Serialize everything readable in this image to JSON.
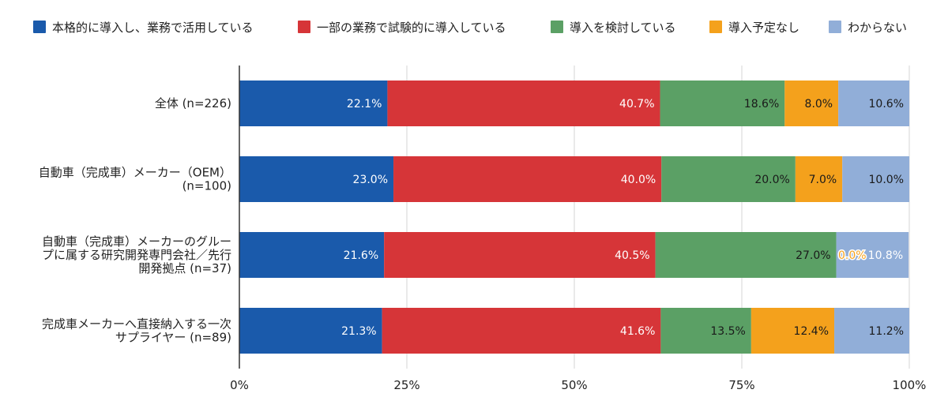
{
  "chart_data": {
    "type": "bar",
    "orientation": "horizontal",
    "stacked": "percent",
    "legend_position": "top",
    "grid": true,
    "xlim": [
      0,
      100
    ],
    "ticks": [
      "0%",
      "25%",
      "50%",
      "75%",
      "100%"
    ],
    "categories": [
      [
        "全体 (n=226)"
      ],
      [
        "自動車（完成車）メーカー（OEM）",
        "(n=100)"
      ],
      [
        "自動車（完成車）メーカーのグルー",
        "プに属する研究開発専門会社／先行",
        "開発拠点 (n=37)"
      ],
      [
        "完成車メーカーへ直接納入する一次",
        "サプライヤー (n=89)"
      ]
    ],
    "series": [
      {
        "name": "本格的に導入し、業務で活用している",
        "color": "#1a5aab",
        "label_color": "#ffffff",
        "values": [
          22.1,
          23.0,
          21.6,
          21.3
        ],
        "labels": [
          "22.1%",
          "23.0%",
          "21.6%",
          "21.3%"
        ]
      },
      {
        "name": "一部の業務で試験的に導入している",
        "color": "#d63538",
        "label_color": "#ffffff",
        "values": [
          40.7,
          40.0,
          40.5,
          41.6
        ],
        "labels": [
          "40.7%",
          "40.0%",
          "40.5%",
          "41.6%"
        ]
      },
      {
        "name": "導入を検討している",
        "color": "#5ba065",
        "label_color": "#1a1a1a",
        "values": [
          18.6,
          20.0,
          27.0,
          13.5
        ],
        "labels": [
          "18.6%",
          "20.0%",
          "27.0%",
          "13.5%"
        ]
      },
      {
        "name": "導入予定なし",
        "color": "#f4a11c",
        "label_color": "#1a1a1a",
        "values": [
          8.0,
          7.0,
          0.0,
          12.4
        ],
        "labels": [
          "8.0%",
          "7.0%",
          "0.0%",
          "12.4%"
        ]
      },
      {
        "name": "わからない",
        "color": "#91aed8",
        "label_color": "#1a1a1a",
        "values": [
          10.6,
          10.0,
          10.8,
          11.2
        ],
        "labels": [
          "10.6%",
          "10.0%",
          "10.8%",
          "11.2%"
        ]
      }
    ]
  }
}
